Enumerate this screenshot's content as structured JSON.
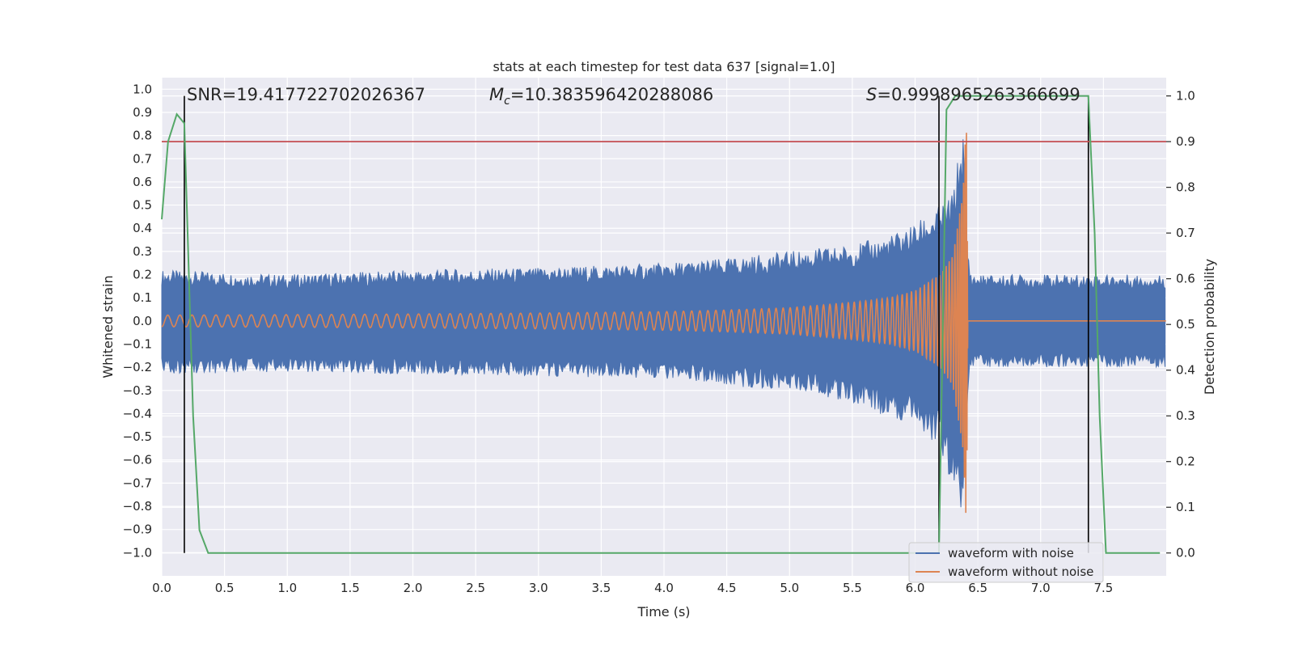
{
  "chart_data": {
    "type": "line",
    "title": "stats at each timestep for test data 637 [signal=1.0]",
    "xlabel": "Time (s)",
    "ylabel_left": "Whitened strain",
    "ylabel_right": "Detection probability",
    "xlim": [
      0.0,
      8.0
    ],
    "ylim_left": [
      -1.1,
      1.05
    ],
    "ylim_right": [
      -0.05,
      1.04
    ],
    "x_ticks": [
      "0.0",
      "0.5",
      "1.0",
      "1.5",
      "2.0",
      "2.5",
      "3.0",
      "3.5",
      "4.0",
      "4.5",
      "5.0",
      "5.5",
      "6.0",
      "6.5",
      "7.0",
      "7.5"
    ],
    "y_ticks_left": [
      "1.0",
      "0.9",
      "0.8",
      "0.7",
      "0.6",
      "0.5",
      "0.4",
      "0.3",
      "0.2",
      "0.1",
      "0.0",
      "−0.1",
      "−0.2",
      "−0.3",
      "−0.4",
      "−0.5",
      "−0.6",
      "−0.7",
      "−0.8",
      "−0.9",
      "−1.0"
    ],
    "y_ticks_right": [
      "1.0",
      "0.9",
      "0.8",
      "0.7",
      "0.6",
      "0.5",
      "0.4",
      "0.3",
      "0.2",
      "0.1",
      "0.0"
    ],
    "grid": true,
    "legend_position": "lower-right",
    "annotations": {
      "snr": "SNR=19.417722702026367",
      "mc_symbol": "M",
      "mc_sub": "c",
      "mc_value": "=10.383596420288086",
      "s_symbol": "S",
      "s_value": "=0.9998965263366699"
    },
    "series": [
      {
        "name": "waveform with noise",
        "color": "#4c72b0",
        "envelope": {
          "x": [
            0.0,
            1.0,
            2.0,
            3.0,
            4.0,
            4.5,
            5.0,
            5.5,
            5.8,
            6.0,
            6.2,
            6.3,
            6.38,
            6.42,
            6.45,
            8.0
          ],
          "max": [
            0.22,
            0.2,
            0.22,
            0.23,
            0.25,
            0.27,
            0.3,
            0.33,
            0.37,
            0.42,
            0.5,
            0.55,
            0.85,
            0.3,
            0.2,
            0.2
          ],
          "min": [
            -0.23,
            -0.22,
            -0.23,
            -0.24,
            -0.25,
            -0.28,
            -0.3,
            -0.35,
            -0.42,
            -0.45,
            -0.55,
            -0.75,
            -0.9,
            -0.3,
            -0.2,
            -0.2
          ]
        }
      },
      {
        "name": "waveform without noise",
        "color": "#dd8452",
        "envelope": {
          "x": [
            0.0,
            1.0,
            2.0,
            3.0,
            4.0,
            4.5,
            5.0,
            5.5,
            5.8,
            6.0,
            6.2,
            6.3,
            6.38,
            6.41,
            6.42,
            8.0
          ],
          "amp": [
            0.025,
            0.027,
            0.03,
            0.034,
            0.04,
            0.047,
            0.057,
            0.08,
            0.1,
            0.13,
            0.2,
            0.28,
            0.55,
            0.9,
            0.0,
            0.0
          ]
        },
        "phase": {
          "tc": 6.42,
          "k": 33.0,
          "p": 0.625
        }
      },
      {
        "name": "detection probability",
        "color": "#55a868",
        "x": [
          0.0,
          0.05,
          0.12,
          0.18,
          0.25,
          0.3,
          0.37,
          0.5,
          6.19,
          6.25,
          6.32,
          6.38,
          6.5,
          7.0,
          7.38,
          7.43,
          7.47,
          7.52,
          7.6,
          7.95
        ],
        "y": [
          0.73,
          0.9,
          0.96,
          0.94,
          0.3,
          0.05,
          0.0,
          0.0,
          0.0,
          0.97,
          1.0,
          1.0,
          1.0,
          1.0,
          1.0,
          0.7,
          0.3,
          0.0,
          0.0,
          0.0
        ]
      }
    ],
    "threshold": {
      "value": 0.9,
      "color": "#c44e52"
    },
    "vertical_markers": [
      0.18,
      6.19,
      7.38
    ]
  }
}
